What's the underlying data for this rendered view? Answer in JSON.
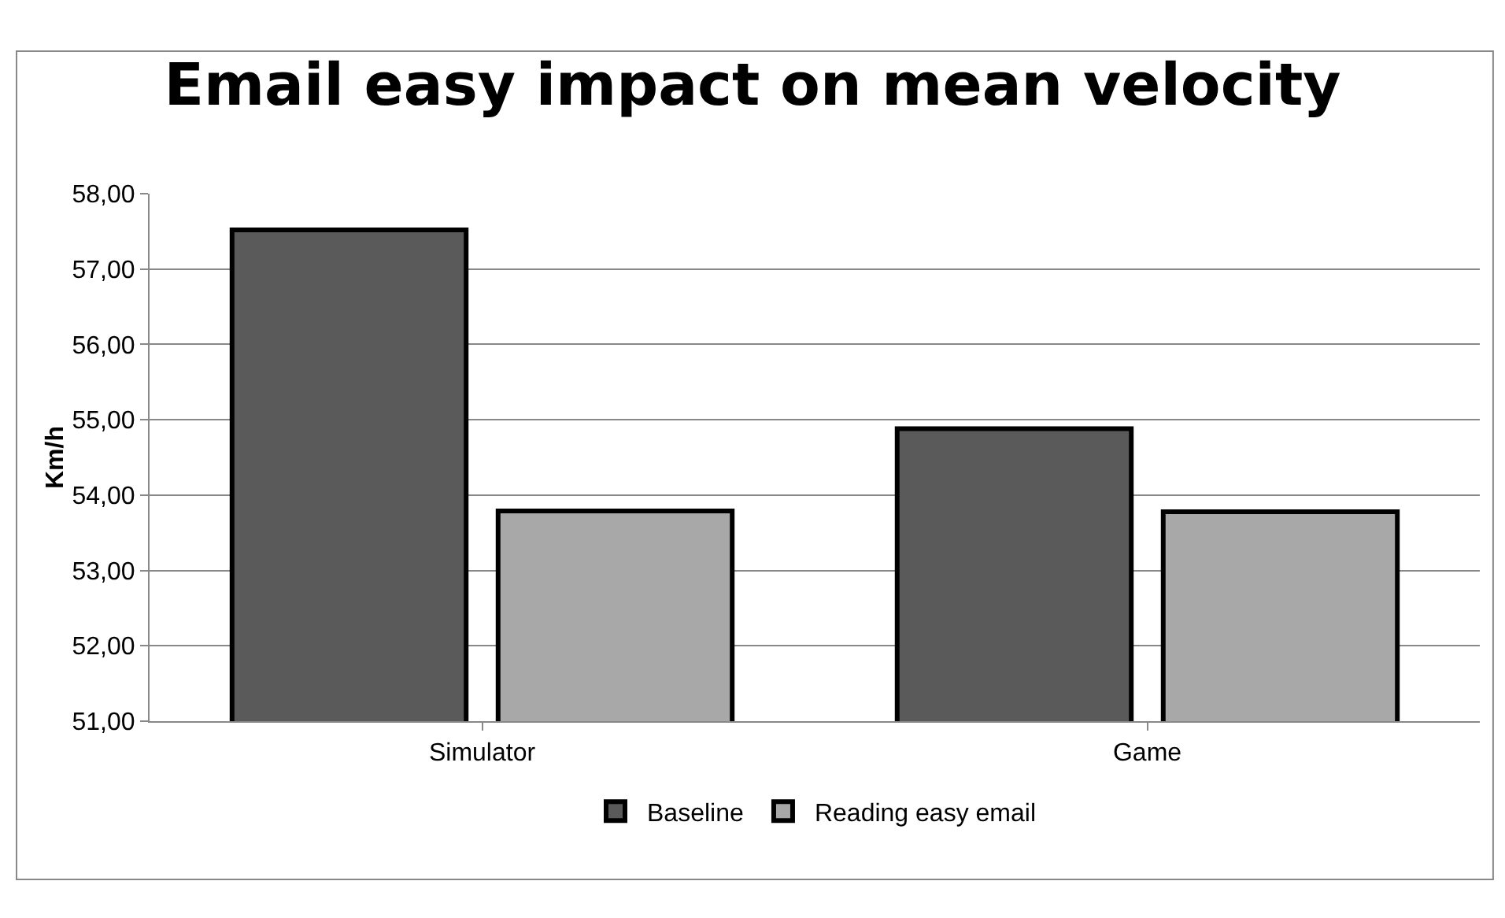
{
  "chart_data": {
    "type": "bar",
    "title": "Email easy impact on mean velocity",
    "ylabel": "Km/h",
    "categories": [
      "Simulator",
      "Game"
    ],
    "series": [
      {
        "name": "Baseline",
        "color": "#5a5a5a",
        "values": [
          57.52,
          54.88
        ]
      },
      {
        "name": "Reading easy email",
        "color": "#a8a8a8",
        "values": [
          53.79,
          53.78
        ]
      }
    ],
    "ylim": [
      51,
      58
    ],
    "yticks": [
      {
        "value": 51,
        "label": "51,00"
      },
      {
        "value": 52,
        "label": "52,00"
      },
      {
        "value": 53,
        "label": "53,00"
      },
      {
        "value": 54,
        "label": "54,00"
      },
      {
        "value": 55,
        "label": "55,00"
      },
      {
        "value": 56,
        "label": "56,00"
      },
      {
        "value": 57,
        "label": "57,00"
      },
      {
        "value": 58,
        "label": "58,00"
      }
    ],
    "grid": "y",
    "legend": "bottom"
  }
}
